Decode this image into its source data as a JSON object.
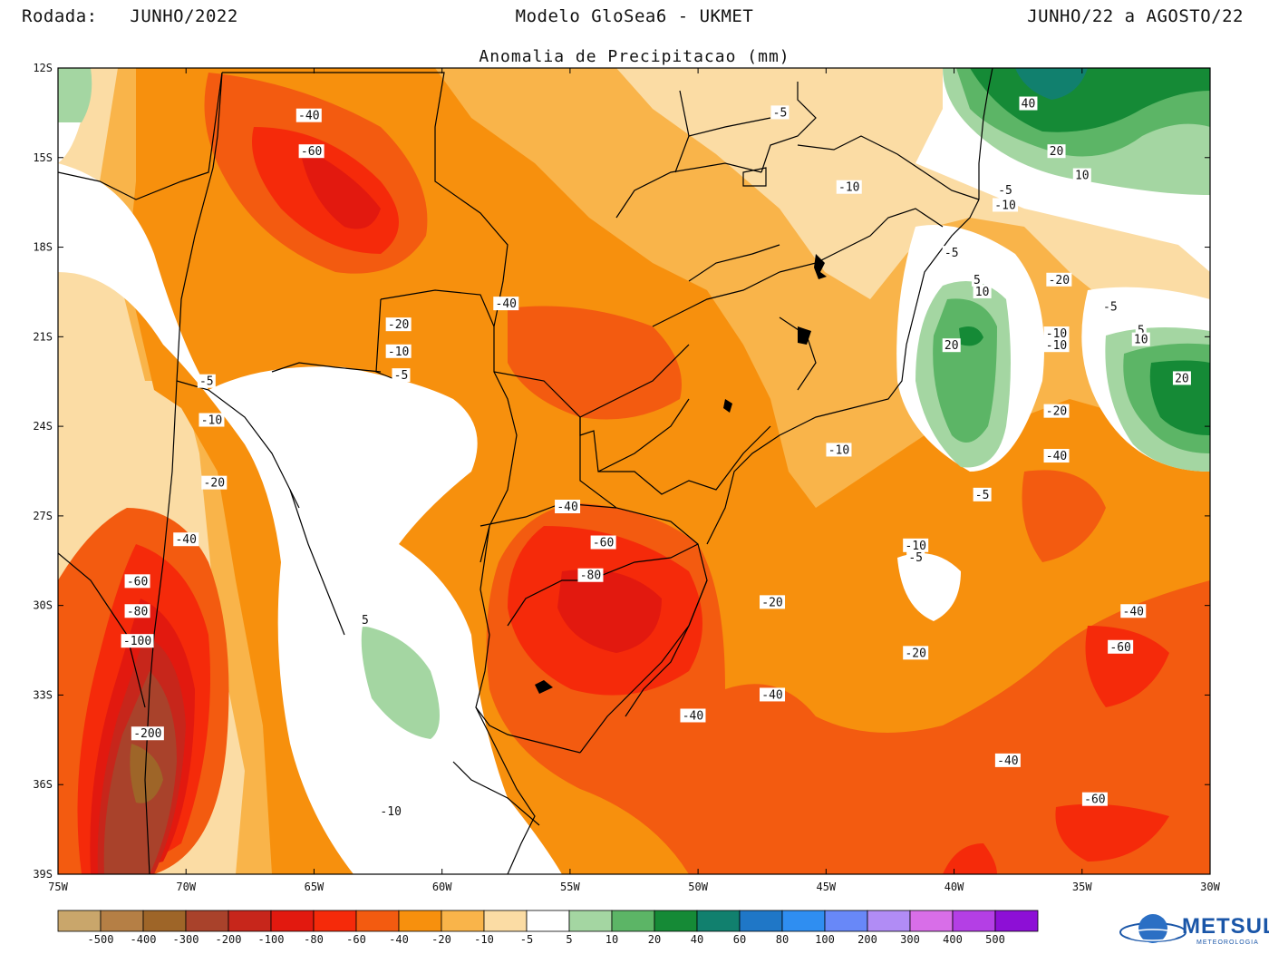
{
  "header": {
    "left": "Rodada:   JUNHO/2022",
    "center": "Modelo GloSea6 - UKMET",
    "right": "JUNHO/22 a AGOSTO/22"
  },
  "subtitle": "Anomalia de Precipitacao (mm)",
  "axes": {
    "lat_labels": [
      "12S",
      "15S",
      "18S",
      "21S",
      "24S",
      "27S",
      "30S",
      "33S",
      "36S",
      "39S"
    ],
    "lon_labels": [
      "75W",
      "70W",
      "65W",
      "60W",
      "55W",
      "50W",
      "45W",
      "40W",
      "35W",
      "30W"
    ]
  },
  "contour_labels": [
    {
      "v": "-40",
      "lon": -65.2,
      "lat": -13.6
    },
    {
      "v": "-60",
      "lon": -65.1,
      "lat": -14.8
    },
    {
      "v": "-5",
      "lon": -46.8,
      "lat": -13.5
    },
    {
      "v": "40",
      "lon": -37.1,
      "lat": -13.2
    },
    {
      "v": "20",
      "lon": -36.0,
      "lat": -14.8
    },
    {
      "v": "10",
      "lon": -35.0,
      "lat": -15.6
    },
    {
      "v": "-10",
      "lon": -44.1,
      "lat": -16.0
    },
    {
      "v": "-5",
      "lon": -38.0,
      "lat": -16.1
    },
    {
      "v": "-10",
      "lon": -38.0,
      "lat": -16.6
    },
    {
      "v": "-5",
      "lon": -40.1,
      "lat": -18.2
    },
    {
      "v": "-20",
      "lon": -35.9,
      "lat": -19.1
    },
    {
      "v": "5",
      "lon": -39.1,
      "lat": -19.1
    },
    {
      "v": "10",
      "lon": -38.9,
      "lat": -19.5
    },
    {
      "v": "-40",
      "lon": -57.5,
      "lat": -19.9
    },
    {
      "v": "-5",
      "lon": -33.9,
      "lat": -20.0
    },
    {
      "v": "-20",
      "lon": -61.7,
      "lat": -20.6
    },
    {
      "v": "-10",
      "lon": -36.0,
      "lat": -20.9
    },
    {
      "v": "5",
      "lon": -32.7,
      "lat": -20.8
    },
    {
      "v": "10",
      "lon": -32.7,
      "lat": -21.1
    },
    {
      "v": "-10",
      "lon": -36.0,
      "lat": -21.3
    },
    {
      "v": "20",
      "lon": -40.1,
      "lat": -21.3
    },
    {
      "v": "-10",
      "lon": -61.7,
      "lat": -21.5
    },
    {
      "v": "-5",
      "lon": -61.6,
      "lat": -22.3
    },
    {
      "v": "-5",
      "lon": -69.2,
      "lat": -22.5
    },
    {
      "v": "20",
      "lon": -31.1,
      "lat": -22.4
    },
    {
      "v": "-20",
      "lon": -36.0,
      "lat": -23.5
    },
    {
      "v": "-10",
      "lon": -69.0,
      "lat": -23.8
    },
    {
      "v": "-10",
      "lon": -44.5,
      "lat": -24.8
    },
    {
      "v": "-40",
      "lon": -36.0,
      "lat": -25.0
    },
    {
      "v": "-20",
      "lon": -68.9,
      "lat": -25.9
    },
    {
      "v": "-5",
      "lon": -38.9,
      "lat": -26.3
    },
    {
      "v": "-40",
      "lon": -55.1,
      "lat": -26.7
    },
    {
      "v": "-40",
      "lon": -70.0,
      "lat": -27.8
    },
    {
      "v": "-60",
      "lon": -53.7,
      "lat": -27.9
    },
    {
      "v": "-10",
      "lon": -41.5,
      "lat": -28.0
    },
    {
      "v": "-5",
      "lon": -41.5,
      "lat": -28.4
    },
    {
      "v": "-80",
      "lon": -54.2,
      "lat": -29.0
    },
    {
      "v": "-60",
      "lon": -71.9,
      "lat": -29.2
    },
    {
      "v": "-20",
      "lon": -47.1,
      "lat": -29.9
    },
    {
      "v": "-80",
      "lon": -71.9,
      "lat": -30.2
    },
    {
      "v": "-40",
      "lon": -33.0,
      "lat": -30.2
    },
    {
      "v": "-100",
      "lon": -71.9,
      "lat": -31.2
    },
    {
      "v": "5",
      "lon": -63.0,
      "lat": -30.5
    },
    {
      "v": "-60",
      "lon": -33.5,
      "lat": -31.4
    },
    {
      "v": "-20",
      "lon": -41.5,
      "lat": -31.6
    },
    {
      "v": "-40",
      "lon": -47.1,
      "lat": -33.0
    },
    {
      "v": "-40",
      "lon": -50.2,
      "lat": -33.7
    },
    {
      "v": "-200",
      "lon": -71.5,
      "lat": -34.3
    },
    {
      "v": "-40",
      "lon": -37.9,
      "lat": -35.2
    },
    {
      "v": "-60",
      "lon": -34.5,
      "lat": -36.5
    },
    {
      "v": "-10",
      "lon": -62.0,
      "lat": -36.9
    }
  ],
  "colorbar": {
    "labels": [
      "-500",
      "-400",
      "-300",
      "-200",
      "-100",
      "-80",
      "-60",
      "-40",
      "-20",
      "-10",
      "-5",
      "5",
      "10",
      "20",
      "40",
      "60",
      "80",
      "100",
      "200",
      "300",
      "400",
      "500"
    ],
    "colors": [
      "#c9a66b",
      "#b57f45",
      "#9e6528",
      "#a9422b",
      "#c7261b",
      "#e2190f",
      "#f52a0a",
      "#f35b10",
      "#f7900d",
      "#f9b44a",
      "#fbdca4",
      "#ffffff",
      "#a4d6a2",
      "#5cb566",
      "#158a36",
      "#11806e",
      "#1f77c7",
      "#2f8ef1",
      "#6888f8",
      "#b18cf5",
      "#d86ee8",
      "#b43fe5",
      "#8d0fd6"
    ]
  },
  "colors": {
    "m5": "#fbdca4",
    "m10": "#f9b44a",
    "m20": "#f7900d",
    "m40": "#f35b10",
    "m60": "#f52a0a",
    "m80": "#e2190f",
    "m100": "#c7261b",
    "m200": "#a9422b",
    "p5": "#a4d6a2",
    "p10": "#5cb566",
    "p20": "#158a36",
    "p40": "#11806e"
  },
  "logo": {
    "name": "METSUL",
    "sub": "METEOROLOGIA"
  }
}
